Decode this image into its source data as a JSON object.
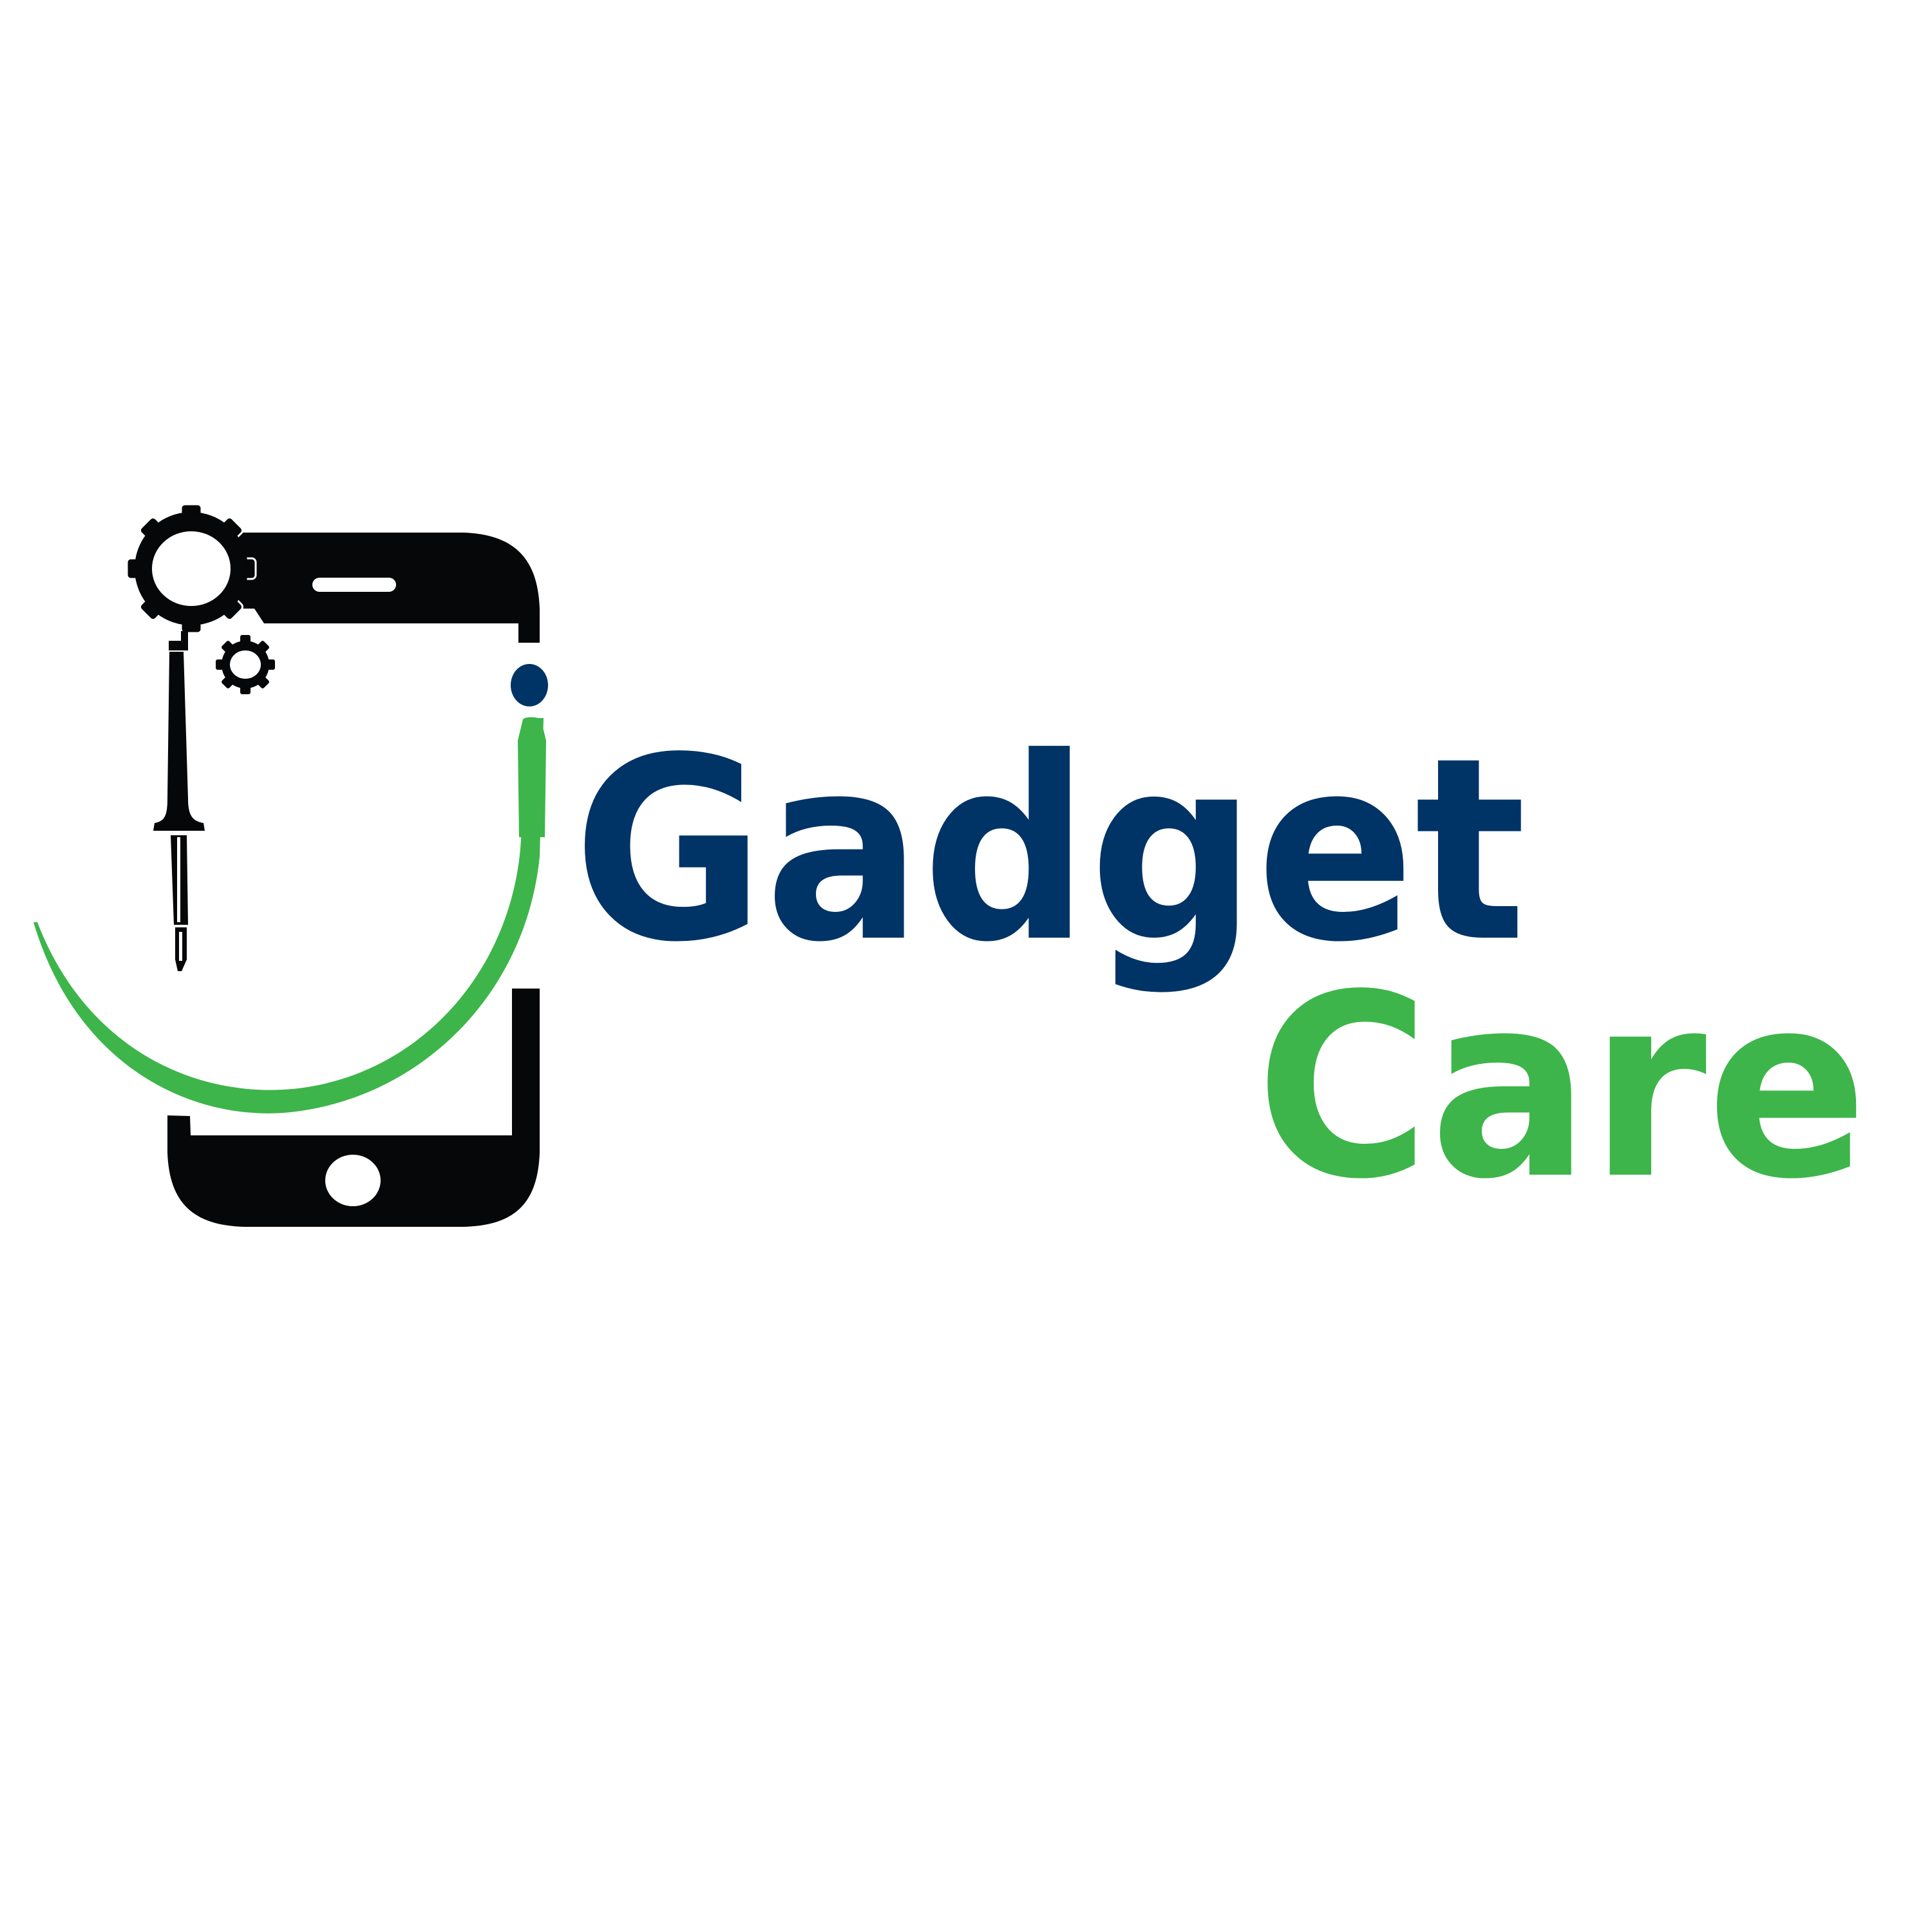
{
  "logo": {
    "word_primary": "Gadget",
    "word_secondary": "Care",
    "icon_name": "phone-repair-icon"
  },
  "colors": {
    "background": "#ffffff",
    "navy": "#003366",
    "green": "#3db54a",
    "black": "#060708"
  }
}
